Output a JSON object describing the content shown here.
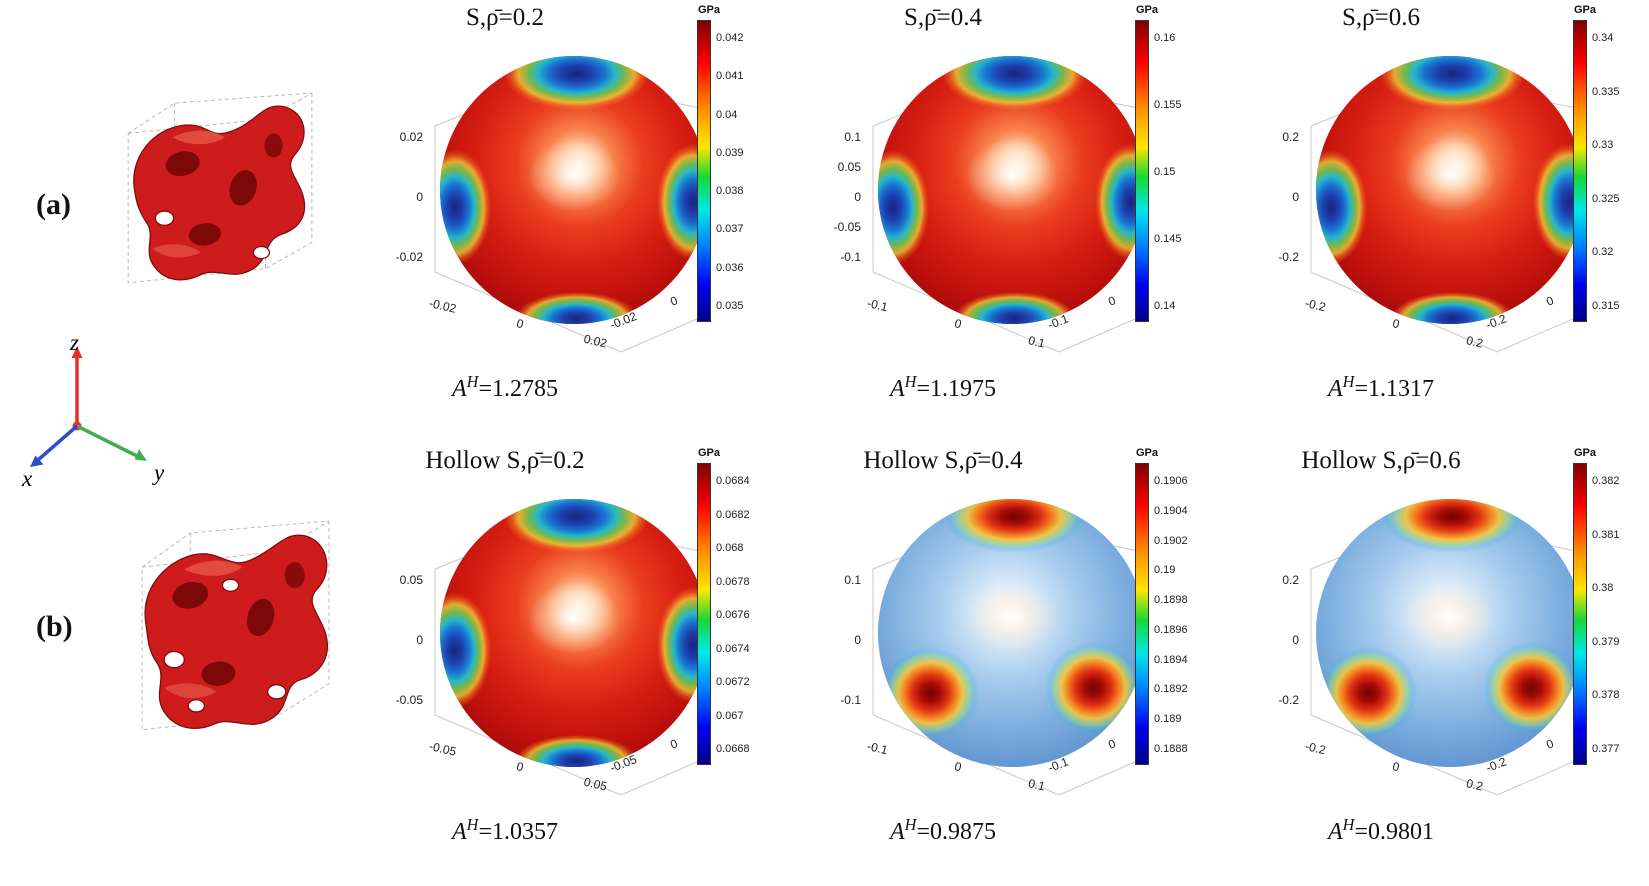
{
  "figure": {
    "row_labels": [
      "(a)",
      "(b)"
    ],
    "triad": {
      "x": "x",
      "y": "y",
      "z": "z"
    }
  },
  "plots": [
    {
      "title": "S,ρ̄=0.2",
      "unit": "GPa",
      "colorbar_ticks": [
        "0.042",
        "0.041",
        "0.04",
        "0.039",
        "0.038",
        "0.037",
        "0.036",
        "0.035"
      ],
      "z_ticks": [
        "0.02",
        "0",
        "-0.02"
      ],
      "x_ticks": [
        "-0.02",
        "0",
        "0.02"
      ],
      "y_ticks": [
        "-0.02",
        "0",
        "0.02"
      ],
      "annotation": {
        "symbol": "A",
        "sup": "H",
        "eq": "=1.2785"
      }
    },
    {
      "title": "S,ρ̄=0.4",
      "unit": "GPa",
      "colorbar_ticks": [
        "0.16",
        "0.155",
        "0.15",
        "0.145",
        "0.14"
      ],
      "z_ticks": [
        "0.1",
        "0.05",
        "0",
        "-0.05",
        "-0.1"
      ],
      "x_ticks": [
        "-0.1",
        "0",
        "0.1"
      ],
      "y_ticks": [
        "-0.1",
        "0",
        "0.1"
      ],
      "annotation": {
        "symbol": "A",
        "sup": "H",
        "eq": "=1.1975"
      }
    },
    {
      "title": "S,ρ̄=0.6",
      "unit": "GPa",
      "colorbar_ticks": [
        "0.34",
        "0.335",
        "0.33",
        "0.325",
        "0.32",
        "0.315"
      ],
      "z_ticks": [
        "0.2",
        "0",
        "-0.2"
      ],
      "x_ticks": [
        "-0.2",
        "0",
        "0.2"
      ],
      "y_ticks": [
        "-0.2",
        "0",
        "0.2"
      ],
      "annotation": {
        "symbol": "A",
        "sup": "H",
        "eq": "=1.1317"
      }
    },
    {
      "title": "Hollow S,ρ̄=0.2",
      "unit": "GPa",
      "colorbar_ticks": [
        "0.0684",
        "0.0682",
        "0.068",
        "0.0678",
        "0.0676",
        "0.0674",
        "0.0672",
        "0.067",
        "0.0668"
      ],
      "z_ticks": [
        "0.05",
        "0",
        "-0.05"
      ],
      "x_ticks": [
        "-0.05",
        "0",
        "0.05"
      ],
      "y_ticks": [
        "-0.05",
        "0",
        "0.05"
      ],
      "annotation": {
        "symbol": "A",
        "sup": "H",
        "eq": "=1.0357"
      }
    },
    {
      "title": "Hollow S,ρ̄=0.4",
      "unit": "GPa",
      "colorbar_ticks": [
        "0.1906",
        "0.1904",
        "0.1902",
        "0.19",
        "0.1898",
        "0.1896",
        "0.1894",
        "0.1892",
        "0.189",
        "0.1888"
      ],
      "z_ticks": [
        "0.1",
        "0",
        "-0.1"
      ],
      "x_ticks": [
        "-0.1",
        "0",
        "0.1"
      ],
      "y_ticks": [
        "-0.1",
        "0",
        "0.1"
      ],
      "annotation": {
        "symbol": "A",
        "sup": "H",
        "eq": "=0.9875"
      }
    },
    {
      "title": "Hollow S,ρ̄=0.6",
      "unit": "GPa",
      "colorbar_ticks": [
        "0.382",
        "0.381",
        "0.38",
        "0.379",
        "0.378",
        "0.377"
      ],
      "z_ticks": [
        "0.2",
        "0",
        "-0.2"
      ],
      "x_ticks": [
        "-0.2",
        "0",
        "0.2"
      ],
      "y_ticks": [
        "-0.2",
        "0",
        "0.2"
      ],
      "annotation": {
        "symbol": "A",
        "sup": "H",
        "eq": "=0.9801"
      }
    }
  ],
  "chart_data": [
    {
      "type": "heatmap",
      "rendering": "3D directional elastic-modulus surface, jet colormap",
      "structure": "S",
      "relative_density": 0.2,
      "title": "S,ρ̄=0.2",
      "colorbar_unit": "GPa",
      "colorbar_ticks_gpa": [
        0.042,
        0.041,
        0.04,
        0.039,
        0.038,
        0.037,
        0.036,
        0.035
      ],
      "modulus_range_gpa": [
        0.035,
        0.042
      ],
      "axis_ticks": {
        "x": [
          -0.02,
          0,
          0.02
        ],
        "y": [
          -0.02,
          0,
          0.02
        ],
        "z": [
          -0.02,
          0,
          0.02
        ]
      },
      "anisotropy_index_AH": 1.2785,
      "pattern": "red high-modulus body, blue minima lobes at axis directions, white maximum toward viewer"
    },
    {
      "type": "heatmap",
      "rendering": "3D directional elastic-modulus surface, jet colormap",
      "structure": "S",
      "relative_density": 0.4,
      "title": "S,ρ̄=0.4",
      "colorbar_unit": "GPa",
      "colorbar_ticks_gpa": [
        0.16,
        0.155,
        0.15,
        0.145,
        0.14
      ],
      "modulus_range_gpa": [
        0.14,
        0.16
      ],
      "axis_ticks": {
        "x": [
          -0.1,
          0,
          0.1
        ],
        "y": [
          -0.1,
          0,
          0.1
        ],
        "z": [
          -0.1,
          -0.05,
          0,
          0.05,
          0.1
        ]
      },
      "anisotropy_index_AH": 1.1975,
      "pattern": "red high-modulus body, blue minima lobes at axis directions, white maximum toward viewer"
    },
    {
      "type": "heatmap",
      "rendering": "3D directional elastic-modulus surface, jet colormap",
      "structure": "S",
      "relative_density": 0.6,
      "title": "S,ρ̄=0.6",
      "colorbar_unit": "GPa",
      "colorbar_ticks_gpa": [
        0.34,
        0.335,
        0.33,
        0.325,
        0.32,
        0.315
      ],
      "modulus_range_gpa": [
        0.315,
        0.34
      ],
      "axis_ticks": {
        "x": [
          -0.2,
          0,
          0.2
        ],
        "y": [
          -0.2,
          0,
          0.2
        ],
        "z": [
          -0.2,
          0,
          0.2
        ]
      },
      "anisotropy_index_AH": 1.1317,
      "pattern": "red high-modulus body, blue minima lobes at axis directions, white maximum toward viewer"
    },
    {
      "type": "heatmap",
      "rendering": "3D directional elastic-modulus surface, jet colormap",
      "structure": "Hollow S",
      "relative_density": 0.2,
      "title": "Hollow S,ρ̄=0.2",
      "colorbar_unit": "GPa",
      "colorbar_ticks_gpa": [
        0.0684,
        0.0682,
        0.068,
        0.0678,
        0.0676,
        0.0674,
        0.0672,
        0.067,
        0.0668
      ],
      "modulus_range_gpa": [
        0.0668,
        0.0684
      ],
      "axis_ticks": {
        "x": [
          -0.05,
          0,
          0.05
        ],
        "y": [
          -0.05,
          0,
          0.05
        ],
        "z": [
          -0.05,
          0,
          0.05
        ]
      },
      "anisotropy_index_AH": 1.0357,
      "pattern": "red body, blue minima lobes at axis directions, white maximum toward viewer"
    },
    {
      "type": "heatmap",
      "rendering": "3D directional elastic-modulus surface, jet colormap",
      "structure": "Hollow S",
      "relative_density": 0.4,
      "title": "Hollow S,ρ̄=0.4",
      "colorbar_unit": "GPa",
      "colorbar_ticks_gpa": [
        0.1906,
        0.1904,
        0.1902,
        0.19,
        0.1898,
        0.1896,
        0.1894,
        0.1892,
        0.189,
        0.1888
      ],
      "modulus_range_gpa": [
        0.1888,
        0.1906
      ],
      "axis_ticks": {
        "x": [
          -0.1,
          0,
          0.1
        ],
        "y": [
          -0.1,
          0,
          0.1
        ],
        "z": [
          -0.1,
          0,
          0.1
        ]
      },
      "anisotropy_index_AH": 0.9875,
      "pattern": "blue body, red maxima lobes at axis directions, pale center"
    },
    {
      "type": "heatmap",
      "rendering": "3D directional elastic-modulus surface, jet colormap",
      "structure": "Hollow S",
      "relative_density": 0.6,
      "title": "Hollow S,ρ̄=0.6",
      "colorbar_unit": "GPa",
      "colorbar_ticks_gpa": [
        0.382,
        0.381,
        0.38,
        0.379,
        0.378,
        0.377
      ],
      "modulus_range_gpa": [
        0.377,
        0.382
      ],
      "axis_ticks": {
        "x": [
          -0.2,
          0,
          0.2
        ],
        "y": [
          -0.2,
          0,
          0.2
        ],
        "z": [
          -0.2,
          0,
          0.2
        ]
      },
      "anisotropy_index_AH": 0.9801,
      "pattern": "blue body, red maxima lobes at axis directions, pale center"
    }
  ],
  "colors": {
    "structure_red": "#ce1c1c",
    "axis_x_blue": "#2a4fc9",
    "axis_y_green": "#3faf4c",
    "axis_z_red": "#e23128",
    "colormap": "jet"
  }
}
